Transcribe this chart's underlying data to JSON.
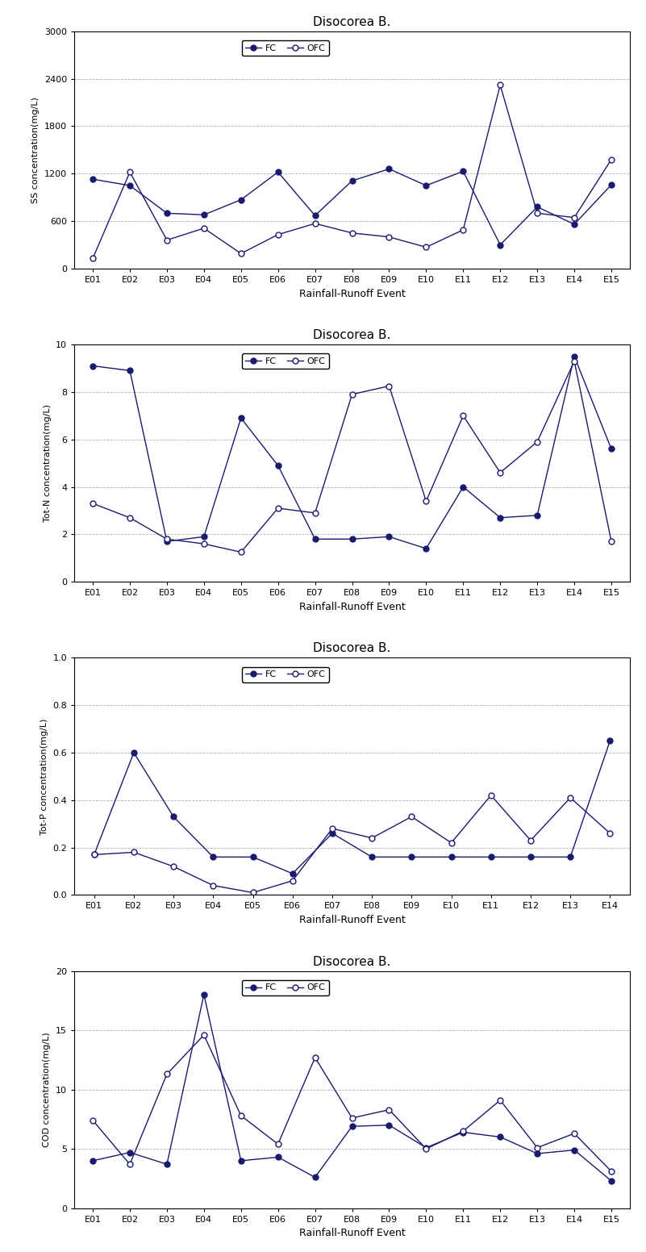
{
  "title": "Disocorea B.",
  "fc_color": "#1a1a6e",
  "ofc_color": "#1a1a6e",
  "ss": {
    "ylabel": "SS concentration(mg/L)",
    "xlabel": "Rainfall-Runoff Event",
    "ylim": [
      0,
      3000
    ],
    "yticks": [
      0,
      600,
      1200,
      1800,
      2400,
      3000
    ],
    "categories": [
      "E01",
      "E02",
      "E03",
      "E04",
      "E05",
      "E06",
      "E07",
      "E08",
      "E09",
      "E10",
      "E11",
      "E12",
      "E13",
      "E14",
      "E15"
    ],
    "fc": [
      1130,
      1050,
      700,
      680,
      870,
      1220,
      670,
      1110,
      1260,
      1050,
      1230,
      300,
      780,
      560,
      1060
    ],
    "ofc": [
      130,
      1220,
      360,
      510,
      190,
      430,
      570,
      450,
      400,
      270,
      490,
      2320,
      700,
      645,
      1380
    ]
  },
  "totn": {
    "ylabel": "Tot-N concentration(mg/L)",
    "xlabel": "Rainfall-Runoff Event",
    "ylim": [
      0,
      10
    ],
    "yticks": [
      0,
      2,
      4,
      6,
      8,
      10
    ],
    "categories": [
      "E01",
      "E02",
      "E03",
      "E04",
      "E05",
      "E06",
      "E07",
      "E08",
      "E09",
      "E10",
      "E11",
      "E12",
      "E13",
      "E14",
      "E15"
    ],
    "fc": [
      9.1,
      8.9,
      1.7,
      1.9,
      6.9,
      4.9,
      1.8,
      1.8,
      1.9,
      1.4,
      4.0,
      2.7,
      2.8,
      9.5,
      5.6
    ],
    "ofc": [
      3.3,
      2.7,
      1.8,
      1.6,
      1.25,
      3.1,
      2.9,
      7.9,
      8.25,
      3.4,
      7.0,
      4.6,
      5.9,
      9.3,
      1.7
    ]
  },
  "totp": {
    "ylabel": "Tot-P concentration(mg/L)",
    "xlabel": "Rainfall-Runoff Event",
    "ylim": [
      0.0,
      1.0
    ],
    "yticks": [
      0.0,
      0.2,
      0.4,
      0.6,
      0.8,
      1.0
    ],
    "categories": [
      "E01",
      "E02",
      "E03",
      "E04",
      "E05",
      "E06",
      "E07",
      "E08",
      "E09",
      "E10",
      "E11",
      "E12",
      "E13",
      "E14"
    ],
    "fc": [
      0.17,
      0.6,
      0.33,
      0.16,
      0.16,
      0.09,
      0.26,
      0.16,
      0.16,
      0.16,
      0.16,
      0.16,
      0.16,
      0.65
    ],
    "ofc": [
      0.17,
      0.18,
      0.12,
      0.04,
      0.01,
      0.06,
      0.28,
      0.24,
      0.33,
      0.22,
      0.42,
      0.23,
      0.41,
      0.26
    ]
  },
  "cod": {
    "ylabel": "COD concentration(mg/L)",
    "xlabel": "Rainfall-Runoff Event",
    "ylim": [
      0,
      20
    ],
    "yticks": [
      0,
      5,
      10,
      15,
      20
    ],
    "categories": [
      "E01",
      "E02",
      "E03",
      "E04",
      "E05",
      "E06",
      "E07",
      "E08",
      "E09",
      "E10",
      "E11",
      "E12",
      "E13",
      "E14",
      "E15"
    ],
    "fc": [
      4.0,
      4.7,
      3.7,
      18.0,
      4.0,
      4.3,
      2.6,
      6.9,
      7.0,
      5.1,
      6.4,
      6.0,
      4.6,
      4.9,
      2.3
    ],
    "ofc": [
      7.4,
      3.7,
      11.3,
      14.6,
      7.8,
      5.4,
      12.7,
      7.6,
      8.3,
      5.0,
      6.5,
      9.1,
      5.1,
      6.3,
      3.1
    ]
  }
}
